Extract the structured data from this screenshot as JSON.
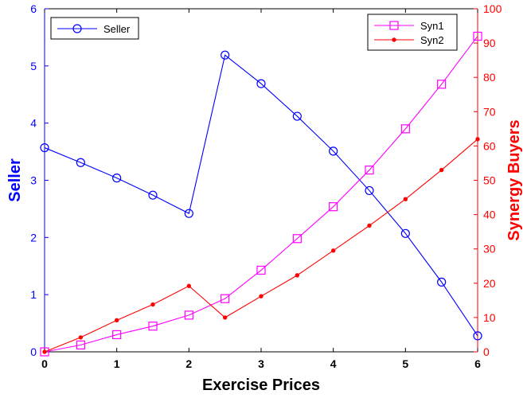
{
  "chart_data": {
    "type": "line",
    "xlabel": "Exercise Prices",
    "ylabel_left": "Seller",
    "ylabel_right": "Synergy Buyers",
    "xlim": [
      0,
      6
    ],
    "ylim_left": [
      0,
      6
    ],
    "ylim_right": [
      0,
      100
    ],
    "x_ticks": [
      "0",
      "1",
      "2",
      "3",
      "4",
      "5",
      "6"
    ],
    "y_left_ticks": [
      "0",
      "1",
      "2",
      "3",
      "4",
      "5",
      "6"
    ],
    "y_right_ticks": [
      "0",
      "10",
      "20",
      "30",
      "40",
      "50",
      "60",
      "70",
      "80",
      "90",
      "100"
    ],
    "grid": false,
    "colors": {
      "left_axis": "#0000ff",
      "right_axis": "#ff0000",
      "seller": "#0000ff",
      "syn1": "#ff00ff",
      "syn2": "#ff0000"
    },
    "series": [
      {
        "name": "Seller",
        "axis": "left",
        "marker": "circle",
        "legend_position": "top-left",
        "x": [
          0,
          0.5,
          1,
          1.5,
          2,
          2.5,
          3,
          3.5,
          4,
          4.5,
          5,
          5.5,
          6
        ],
        "values": [
          3.57,
          3.31,
          3.04,
          2.74,
          2.42,
          5.19,
          4.69,
          4.12,
          3.51,
          2.82,
          2.07,
          1.22,
          0.28
        ]
      },
      {
        "name": "Syn1",
        "axis": "right",
        "marker": "square",
        "legend_position": "top-right",
        "x": [
          0,
          0.5,
          1,
          1.5,
          2,
          2.5,
          3,
          3.5,
          4,
          4.5,
          5,
          5.5,
          6
        ],
        "values": [
          0,
          2.0,
          5.0,
          7.5,
          10.7,
          15.5,
          23.8,
          33.0,
          42.3,
          53.0,
          65.0,
          78.0,
          92.0
        ]
      },
      {
        "name": "Syn2",
        "axis": "right",
        "marker": "dot",
        "legend_position": "top-right",
        "x": [
          0,
          0.5,
          1,
          1.5,
          2,
          2.5,
          3,
          3.5,
          4,
          4.5,
          5,
          5.5,
          6
        ],
        "values": [
          0,
          4.2,
          9.2,
          13.8,
          19.2,
          10.0,
          16.2,
          22.3,
          29.5,
          36.8,
          44.5,
          53.0,
          62.0
        ]
      }
    ]
  }
}
